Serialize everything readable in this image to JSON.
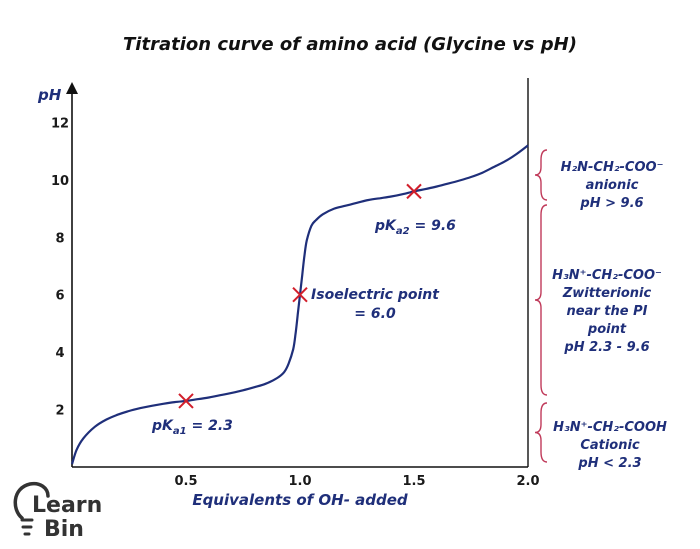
{
  "colors": {
    "curve": "#1f2f7a",
    "marker": "#d21f2b",
    "brace": "#c03a5a",
    "axis": "#111111",
    "text": "#1f2f7a",
    "logo": "#333333"
  },
  "chart_data": {
    "type": "line",
    "title": "Titration curve of amino acid (Glycine vs pH)",
    "xlabel": "Equivalents of OH- added",
    "ylabel": "pH",
    "xlim": [
      0,
      2.0
    ],
    "ylim": [
      0,
      13.2
    ],
    "x_ticks": [
      0.5,
      1.0,
      1.5,
      2.0
    ],
    "x_tick_labels": [
      "0.5",
      "1.0",
      "1.5",
      "2.0"
    ],
    "y_ticks": [
      2,
      4,
      6,
      8,
      10,
      12
    ],
    "y_tick_labels": [
      "2",
      "4",
      "6",
      "8",
      "10",
      "12"
    ],
    "grid": false,
    "series": [
      {
        "x": [
          0.0,
          0.02,
          0.05,
          0.1,
          0.15,
          0.2,
          0.25,
          0.3,
          0.35,
          0.4,
          0.45,
          0.5,
          0.55,
          0.6,
          0.65,
          0.7,
          0.75,
          0.8,
          0.85,
          0.9,
          0.93,
          0.95,
          0.97,
          0.98,
          0.99,
          1.0,
          1.01,
          1.02,
          1.03,
          1.05,
          1.07,
          1.1,
          1.15,
          1.2,
          1.25,
          1.3,
          1.35,
          1.4,
          1.45,
          1.5,
          1.55,
          1.6,
          1.65,
          1.7,
          1.75,
          1.8,
          1.85,
          1.9,
          1.95,
          2.0
        ],
        "y": [
          0.1,
          0.6,
          1.0,
          1.4,
          1.65,
          1.82,
          1.95,
          2.05,
          2.13,
          2.2,
          2.26,
          2.3,
          2.36,
          2.42,
          2.5,
          2.58,
          2.67,
          2.78,
          2.9,
          3.1,
          3.3,
          3.6,
          4.1,
          4.6,
          5.3,
          6.0,
          6.7,
          7.4,
          7.9,
          8.4,
          8.6,
          8.8,
          9.0,
          9.1,
          9.2,
          9.3,
          9.36,
          9.42,
          9.5,
          9.6,
          9.68,
          9.77,
          9.87,
          9.98,
          10.1,
          10.25,
          10.45,
          10.65,
          10.9,
          11.2
        ]
      }
    ],
    "markers": [
      {
        "x": 0.5,
        "y": 2.3
      },
      {
        "x": 1.0,
        "y": 6.0
      },
      {
        "x": 1.5,
        "y": 9.6
      }
    ],
    "annotations": {
      "pka1_prefix": "pK",
      "pka1_sub": "a1",
      "pka1_value": " = 2.3",
      "pka2_prefix": "pK",
      "pka2_sub": "a2",
      "pka2_value": " = 9.6",
      "iso_line1": "Isoelectric point",
      "iso_line2": "= 6.0"
    },
    "side_labels": [
      {
        "formula": "H₂N-CH₂-COO⁻",
        "lines": [
          "anionic",
          "pH > 9.6"
        ],
        "ph_range": [
          9.6,
          11.6
        ]
      },
      {
        "formula": "H₃N⁺-CH₂-COO⁻",
        "lines": [
          "Zwitterionic",
          "near the PI",
          "point",
          "pH 2.3 - 9.6"
        ],
        "ph_range": [
          2.3,
          9.6
        ]
      },
      {
        "formula": "H₃N⁺-CH₂-COOH",
        "lines": [
          "Cationic",
          "pH < 2.3"
        ],
        "ph_range": [
          0,
          2.3
        ]
      }
    ]
  },
  "logo": {
    "line1": "Learn",
    "line2": "Bin"
  }
}
